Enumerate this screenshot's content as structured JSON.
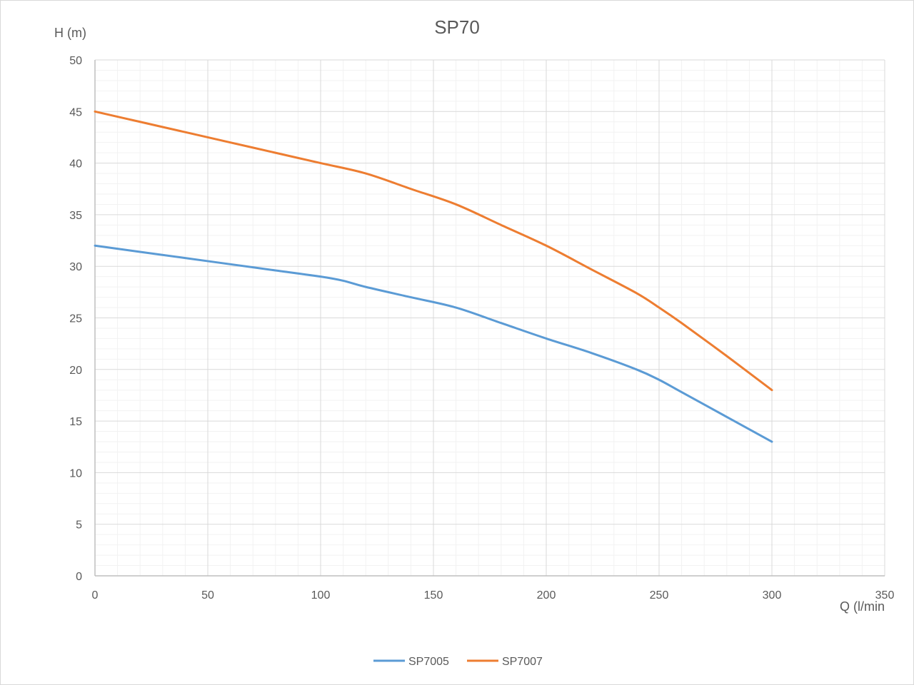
{
  "chart_data": {
    "type": "line",
    "title": "SP70",
    "xlabel": "Q (l/min",
    "ylabel": "H (m)",
    "xlim": [
      0,
      350
    ],
    "ylim": [
      0,
      50
    ],
    "xticks": [
      0,
      50,
      100,
      150,
      200,
      250,
      300,
      350
    ],
    "yticks": [
      0,
      5,
      10,
      15,
      20,
      25,
      30,
      35,
      40,
      45,
      50
    ],
    "grid": true,
    "minor_grid": true,
    "legend_position": "bottom",
    "series": [
      {
        "name": "SP7005",
        "color": "#5B9BD5",
        "x": [
          0,
          20,
          40,
          60,
          80,
          100,
          110,
          120,
          140,
          160,
          180,
          200,
          220,
          240,
          250,
          260,
          280,
          300
        ],
        "y": [
          32,
          31.4,
          30.8,
          30.2,
          29.6,
          29,
          28.6,
          28,
          27,
          26,
          24.5,
          23,
          21.6,
          20,
          19,
          17.8,
          15.4,
          13
        ]
      },
      {
        "name": "SP7007",
        "color": "#ED7D31",
        "x": [
          0,
          20,
          40,
          60,
          80,
          100,
          120,
          140,
          160,
          180,
          200,
          220,
          240,
          250,
          260,
          280,
          300
        ],
        "y": [
          45,
          44,
          43,
          42,
          41,
          40,
          39,
          37.5,
          36,
          34,
          32,
          29.7,
          27.4,
          26,
          24.5,
          21.3,
          18
        ]
      }
    ]
  }
}
